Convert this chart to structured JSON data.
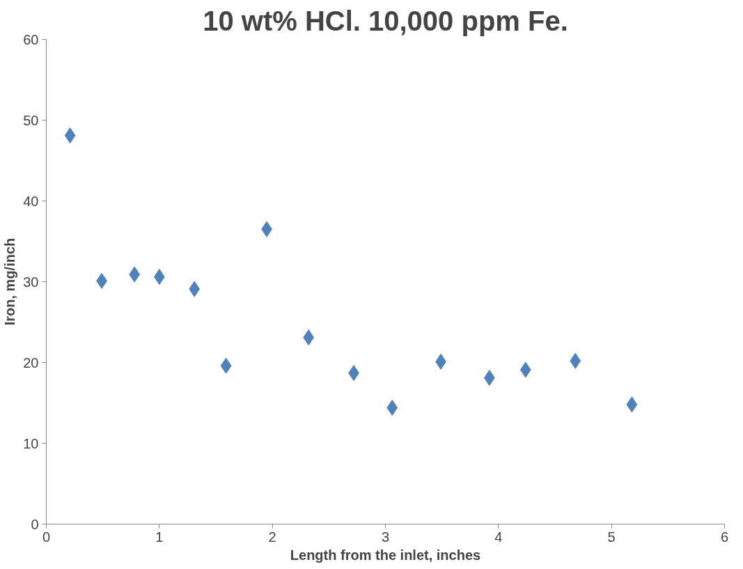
{
  "chart_data": {
    "type": "scatter",
    "title": "10 wt% HCl. 10,000 ppm Fe.",
    "xlabel": "Length from the inlet, inches",
    "ylabel": "Iron, mg/inch",
    "x": [
      0.21,
      0.49,
      0.78,
      1.0,
      1.31,
      1.59,
      1.95,
      2.32,
      2.72,
      3.06,
      3.49,
      3.92,
      4.24,
      4.68,
      5.18
    ],
    "series": [
      {
        "color": "#4f81bd",
        "values": [
          48.1,
          30.1,
          30.9,
          30.6,
          29.1,
          19.6,
          36.5,
          23.1,
          18.7,
          14.4,
          20.1,
          18.1,
          19.1,
          20.2,
          14.8
        ]
      }
    ],
    "xlim": [
      0,
      6
    ],
    "xticks": [
      0,
      1,
      2,
      3,
      4,
      5,
      6
    ],
    "ylim": [
      0,
      60
    ],
    "yticks": [
      0,
      10,
      20,
      30,
      40,
      50,
      60
    ],
    "grid": false,
    "marker": "diamond"
  }
}
